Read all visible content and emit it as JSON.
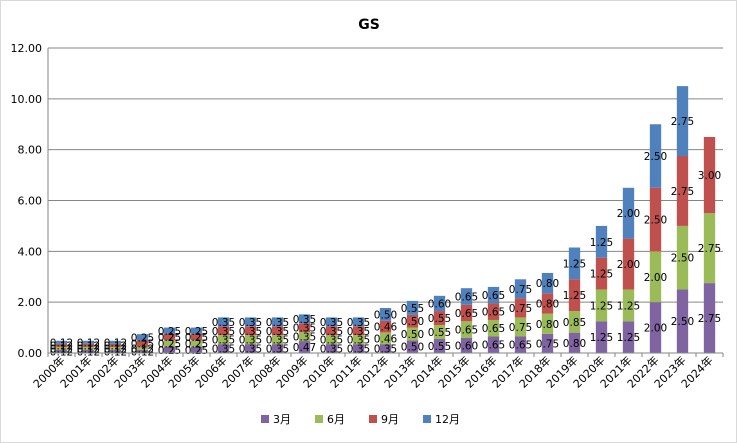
{
  "chart_data": {
    "type": "bar",
    "stacked": true,
    "title": "GS",
    "xlabel": "",
    "ylabel": "",
    "ylim": [
      0,
      12
    ],
    "yticks": [
      "0.00",
      "2.00",
      "4.00",
      "6.00",
      "8.00",
      "10.00",
      "12.00"
    ],
    "grid": true,
    "legend": "bottom",
    "categories": [
      "2000年",
      "2001年",
      "2002年",
      "2003年",
      "2004年",
      "2005年",
      "2006年",
      "2007年",
      "2008年",
      "2009年",
      "2010年",
      "2011年",
      "2012年",
      "2013年",
      "2014年",
      "2015年",
      "2016年",
      "2017年",
      "2018年",
      "2019年",
      "2020年",
      "2021年",
      "2022年",
      "2023年",
      "2024年"
    ],
    "series": [
      {
        "name": "3月",
        "color": "#8064a2",
        "values": [
          0.12,
          0.12,
          0.12,
          0.12,
          0.25,
          0.25,
          0.35,
          0.35,
          0.35,
          0.47,
          0.35,
          0.35,
          0.35,
          0.5,
          0.55,
          0.6,
          0.65,
          0.65,
          0.75,
          0.8,
          1.25,
          1.25,
          2.0,
          2.5,
          2.75
        ],
        "labels": [
          "0.12",
          "0.12",
          "0.12",
          "0.12",
          "0.25",
          "0.25",
          "0.35",
          "0.35",
          "0.35",
          "0.47",
          "0.35",
          "0.35",
          "0.35",
          "0.50",
          "0.55",
          "0.60",
          "0.65",
          "0.65",
          "0.75",
          "0.80",
          "1.25",
          "1.25",
          "2.00",
          "2.50",
          "2.75"
        ]
      },
      {
        "name": "6月",
        "color": "#9bbb59",
        "values": [
          0.12,
          0.12,
          0.12,
          0.12,
          0.25,
          0.25,
          0.35,
          0.35,
          0.35,
          0.35,
          0.35,
          0.35,
          0.46,
          0.5,
          0.55,
          0.65,
          0.65,
          0.75,
          0.8,
          0.85,
          1.25,
          1.25,
          2.0,
          2.5,
          2.75
        ],
        "labels": [
          "0.12",
          "0.12",
          "0.12",
          "0.12",
          "0.25",
          "0.25",
          "0.35",
          "0.35",
          "0.35",
          "0.35",
          "0.35",
          "0.35",
          "0.46",
          "0.50",
          "0.55",
          "0.65",
          "0.65",
          "0.75",
          "0.80",
          "0.85",
          "1.25",
          "1.25",
          "2.00",
          "2.50",
          "2.75"
        ]
      },
      {
        "name": "9月",
        "color": "#c0504d",
        "values": [
          0.12,
          0.12,
          0.12,
          0.25,
          0.25,
          0.25,
          0.35,
          0.35,
          0.35,
          0.35,
          0.35,
          0.35,
          0.46,
          0.5,
          0.55,
          0.65,
          0.65,
          0.75,
          0.8,
          1.25,
          1.25,
          2.0,
          2.5,
          2.75,
          3.0
        ],
        "labels": [
          "0.12",
          "0.12",
          "0.12",
          "0.25",
          "0.25",
          "0.25",
          "0.35",
          "0.35",
          "0.35",
          "0.35",
          "0.35",
          "0.35",
          "0.46",
          "0.50",
          "0.55",
          "0.65",
          "0.65",
          "0.75",
          "0.80",
          "1.25",
          "1.25",
          "2.00",
          "2.50",
          "2.75",
          "3.00"
        ]
      },
      {
        "name": "12月",
        "color": "#4f81bd",
        "values": [
          0.12,
          0.12,
          0.12,
          0.25,
          0.25,
          0.25,
          0.35,
          0.35,
          0.35,
          0.35,
          0.35,
          0.35,
          0.5,
          0.55,
          0.6,
          0.65,
          0.65,
          0.75,
          0.8,
          1.25,
          1.25,
          2.0,
          2.5,
          2.75,
          0
        ],
        "labels": [
          "0.12",
          "0.12",
          "0.12",
          "0.25",
          "0.25",
          "0.25",
          "0.35",
          "0.35",
          "0.35",
          "0.35",
          "0.35",
          "0.35",
          "0.50",
          "0.55",
          "0.60",
          "0.65",
          "0.65",
          "0.75",
          "0.80",
          "1.25",
          "1.25",
          "2.00",
          "2.50",
          "2.75",
          ""
        ]
      }
    ]
  }
}
